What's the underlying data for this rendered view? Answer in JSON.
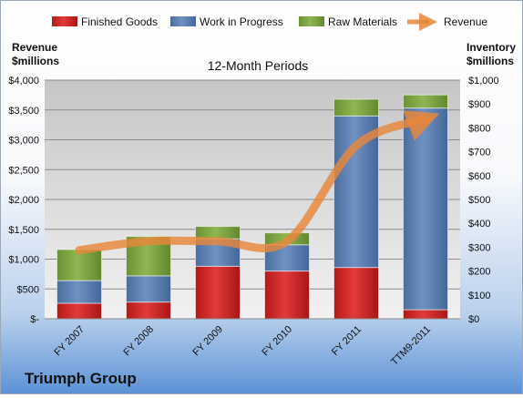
{
  "chart_data": {
    "type": "bar",
    "stacked": true,
    "title": "12-Month Periods",
    "ylabel_left": "Revenue\n$millions",
    "ylabel_right": "Inventory\n$millions",
    "company": "Triumph Group",
    "categories": [
      "FY 2007",
      "FY 2008",
      "FY 2009",
      "FY 2010",
      "FY 2011",
      "TTM9-2011"
    ],
    "left_axis": {
      "ylim": [
        0,
        4000
      ],
      "ticks": [
        0,
        500,
        1000,
        1500,
        2000,
        2500,
        3000,
        3500,
        4000
      ],
      "tick_labels": [
        "$-",
        "$500",
        "$1,000",
        "$1,500",
        "$2,000",
        "$2,500",
        "$3,000",
        "$3,500",
        "$4,000"
      ]
    },
    "right_axis": {
      "ylim": [
        0,
        1000
      ],
      "ticks": [
        0,
        100,
        200,
        300,
        400,
        500,
        600,
        700,
        800,
        900,
        1000
      ],
      "tick_labels": [
        "$0",
        "$100",
        "$200",
        "$300",
        "$400",
        "$500",
        "$600",
        "$700",
        "$800",
        "$900",
        "$1,000"
      ]
    },
    "series": [
      {
        "name": "Finished Goods",
        "axis": "right",
        "kind": "bar",
        "color": "#d42a2a",
        "values": [
          65,
          70,
          220,
          200,
          215,
          38
        ]
      },
      {
        "name": "Work in Progress",
        "axis": "right",
        "kind": "bar",
        "color": "#5b7fb2",
        "values": [
          95,
          110,
          115,
          110,
          635,
          845
        ]
      },
      {
        "name": "Raw Materials",
        "axis": "right",
        "kind": "bar",
        "color": "#7ba23f",
        "values": [
          130,
          165,
          52,
          50,
          70,
          55
        ]
      },
      {
        "name": "Revenue",
        "axis": "left",
        "kind": "line",
        "color": "#e8873a",
        "values": [
          1150,
          1300,
          1300,
          1300,
          2900,
          3350
        ]
      }
    ],
    "legend_position": "top",
    "grid": true
  }
}
